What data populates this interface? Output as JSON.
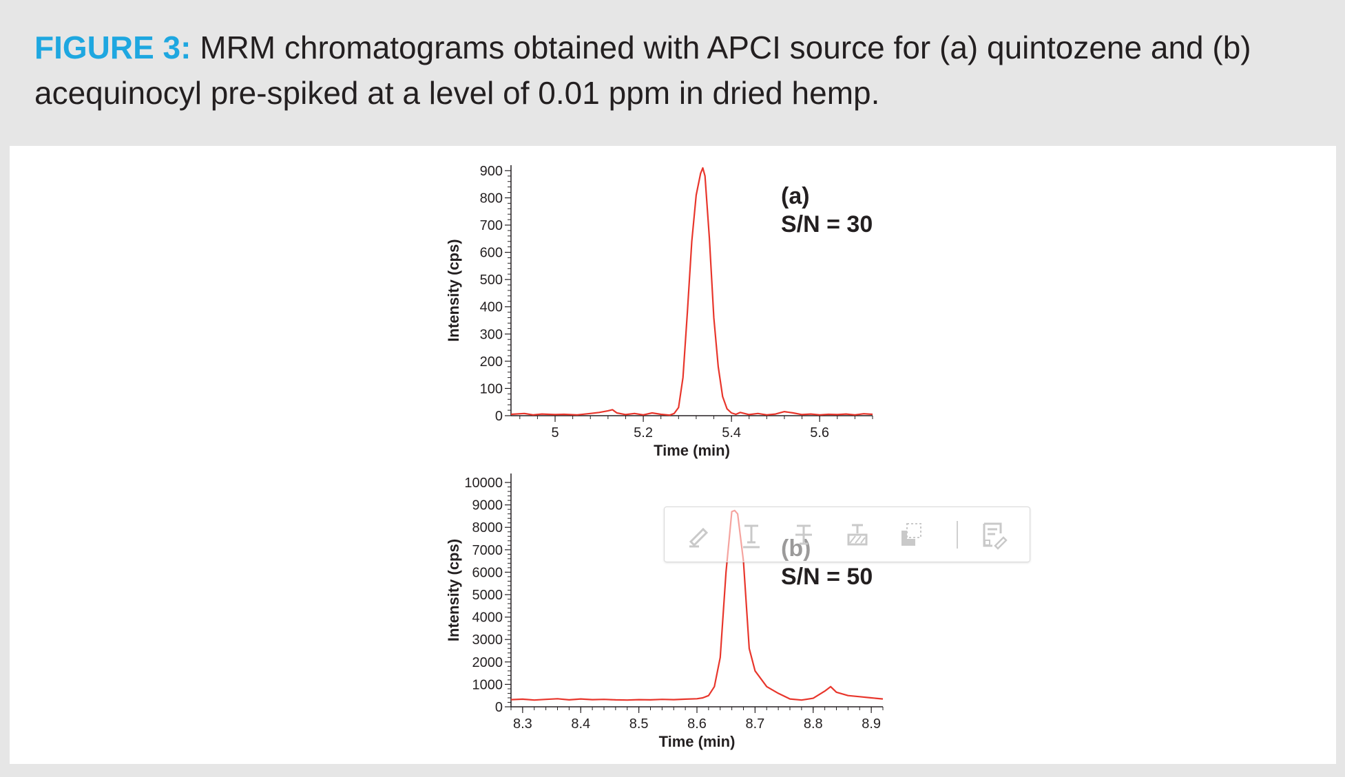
{
  "caption": {
    "label": "FIGURE 3:",
    "text": "MRM chromatograms obtained with APCI source for (a) quintozene and (b) acequinocyl pre-spiked at a level of 0.01 ppm in dried hemp."
  },
  "colors": {
    "accent": "#1ea7e0",
    "trace": "#e8352b",
    "text": "#231f20"
  },
  "toolbar": {
    "icons": [
      "highlight-pen-icon",
      "text-insert-icon",
      "strikethrough-icon",
      "text-replace-icon",
      "area-select-icon",
      "note-edit-icon"
    ]
  },
  "chart_data": [
    {
      "type": "line",
      "annotation": [
        "(a)",
        "S/N = 30"
      ],
      "xlabel": "Time (min)",
      "ylabel": "Intensity (cps)",
      "xlim": [
        4.9,
        5.72
      ],
      "ylim": [
        0,
        920
      ],
      "xticks": [
        5,
        5.2,
        5.4,
        5.6
      ],
      "xtick_labels": [
        "5",
        "5.2",
        "5.4",
        "5.6"
      ],
      "yticks": [
        0,
        100,
        200,
        300,
        400,
        500,
        600,
        700,
        800,
        900
      ],
      "ytick_labels": [
        "0",
        "100",
        "200",
        "300",
        "400",
        "500",
        "600",
        "700",
        "800",
        "900"
      ],
      "series": [
        {
          "x": [
            4.9,
            4.93,
            4.95,
            4.97,
            5.0,
            5.02,
            5.05,
            5.08,
            5.1,
            5.12,
            5.13,
            5.14,
            5.16,
            5.18,
            5.2,
            5.22,
            5.24,
            5.26,
            5.27,
            5.28,
            5.29,
            5.3,
            5.31,
            5.32,
            5.33,
            5.335,
            5.34,
            5.35,
            5.36,
            5.37,
            5.38,
            5.39,
            5.4,
            5.41,
            5.42,
            5.44,
            5.46,
            5.48,
            5.5,
            5.52,
            5.54,
            5.56,
            5.58,
            5.6,
            5.62,
            5.64,
            5.66,
            5.68,
            5.7,
            5.72
          ],
          "y": [
            5,
            8,
            3,
            6,
            4,
            5,
            3,
            8,
            12,
            18,
            22,
            10,
            4,
            8,
            3,
            10,
            5,
            2,
            8,
            30,
            140,
            380,
            640,
            810,
            890,
            910,
            880,
            650,
            360,
            180,
            70,
            25,
            10,
            5,
            12,
            4,
            8,
            3,
            6,
            15,
            10,
            4,
            6,
            3,
            5,
            4,
            6,
            3,
            7,
            5
          ]
        }
      ]
    },
    {
      "type": "line",
      "annotation": [
        "(b)",
        "S/N = 50"
      ],
      "xlabel": "Time (min)",
      "ylabel": "Intensity (cps)",
      "xlim": [
        8.28,
        8.92
      ],
      "ylim": [
        0,
        10400
      ],
      "xticks": [
        8.3,
        8.4,
        8.5,
        8.6,
        8.7,
        8.8,
        8.9
      ],
      "xtick_labels": [
        "8.3",
        "8.4",
        "8.5",
        "8.6",
        "8.7",
        "8.8",
        "8.9"
      ],
      "yticks": [
        0,
        1000,
        2000,
        3000,
        4000,
        5000,
        6000,
        7000,
        8000,
        9000,
        10000
      ],
      "ytick_labels": [
        "0",
        "1000",
        "2000",
        "3000",
        "4000",
        "5000",
        "6000",
        "7000",
        "8000",
        "9000",
        "10000"
      ],
      "series": [
        {
          "x": [
            8.28,
            8.3,
            8.32,
            8.34,
            8.36,
            8.38,
            8.4,
            8.42,
            8.44,
            8.46,
            8.48,
            8.5,
            8.52,
            8.54,
            8.56,
            8.58,
            8.6,
            8.61,
            8.62,
            8.63,
            8.64,
            8.65,
            8.66,
            8.665,
            8.67,
            8.68,
            8.69,
            8.7,
            8.72,
            8.74,
            8.76,
            8.78,
            8.8,
            8.82,
            8.83,
            8.84,
            8.86,
            8.88,
            8.9,
            8.92
          ],
          "y": [
            320,
            340,
            300,
            330,
            360,
            310,
            350,
            320,
            330,
            310,
            300,
            320,
            310,
            330,
            320,
            340,
            360,
            400,
            500,
            900,
            2200,
            6000,
            8700,
            8750,
            8600,
            6500,
            2600,
            1600,
            900,
            600,
            350,
            300,
            380,
            700,
            900,
            650,
            500,
            450,
            400,
            350
          ]
        }
      ]
    }
  ]
}
